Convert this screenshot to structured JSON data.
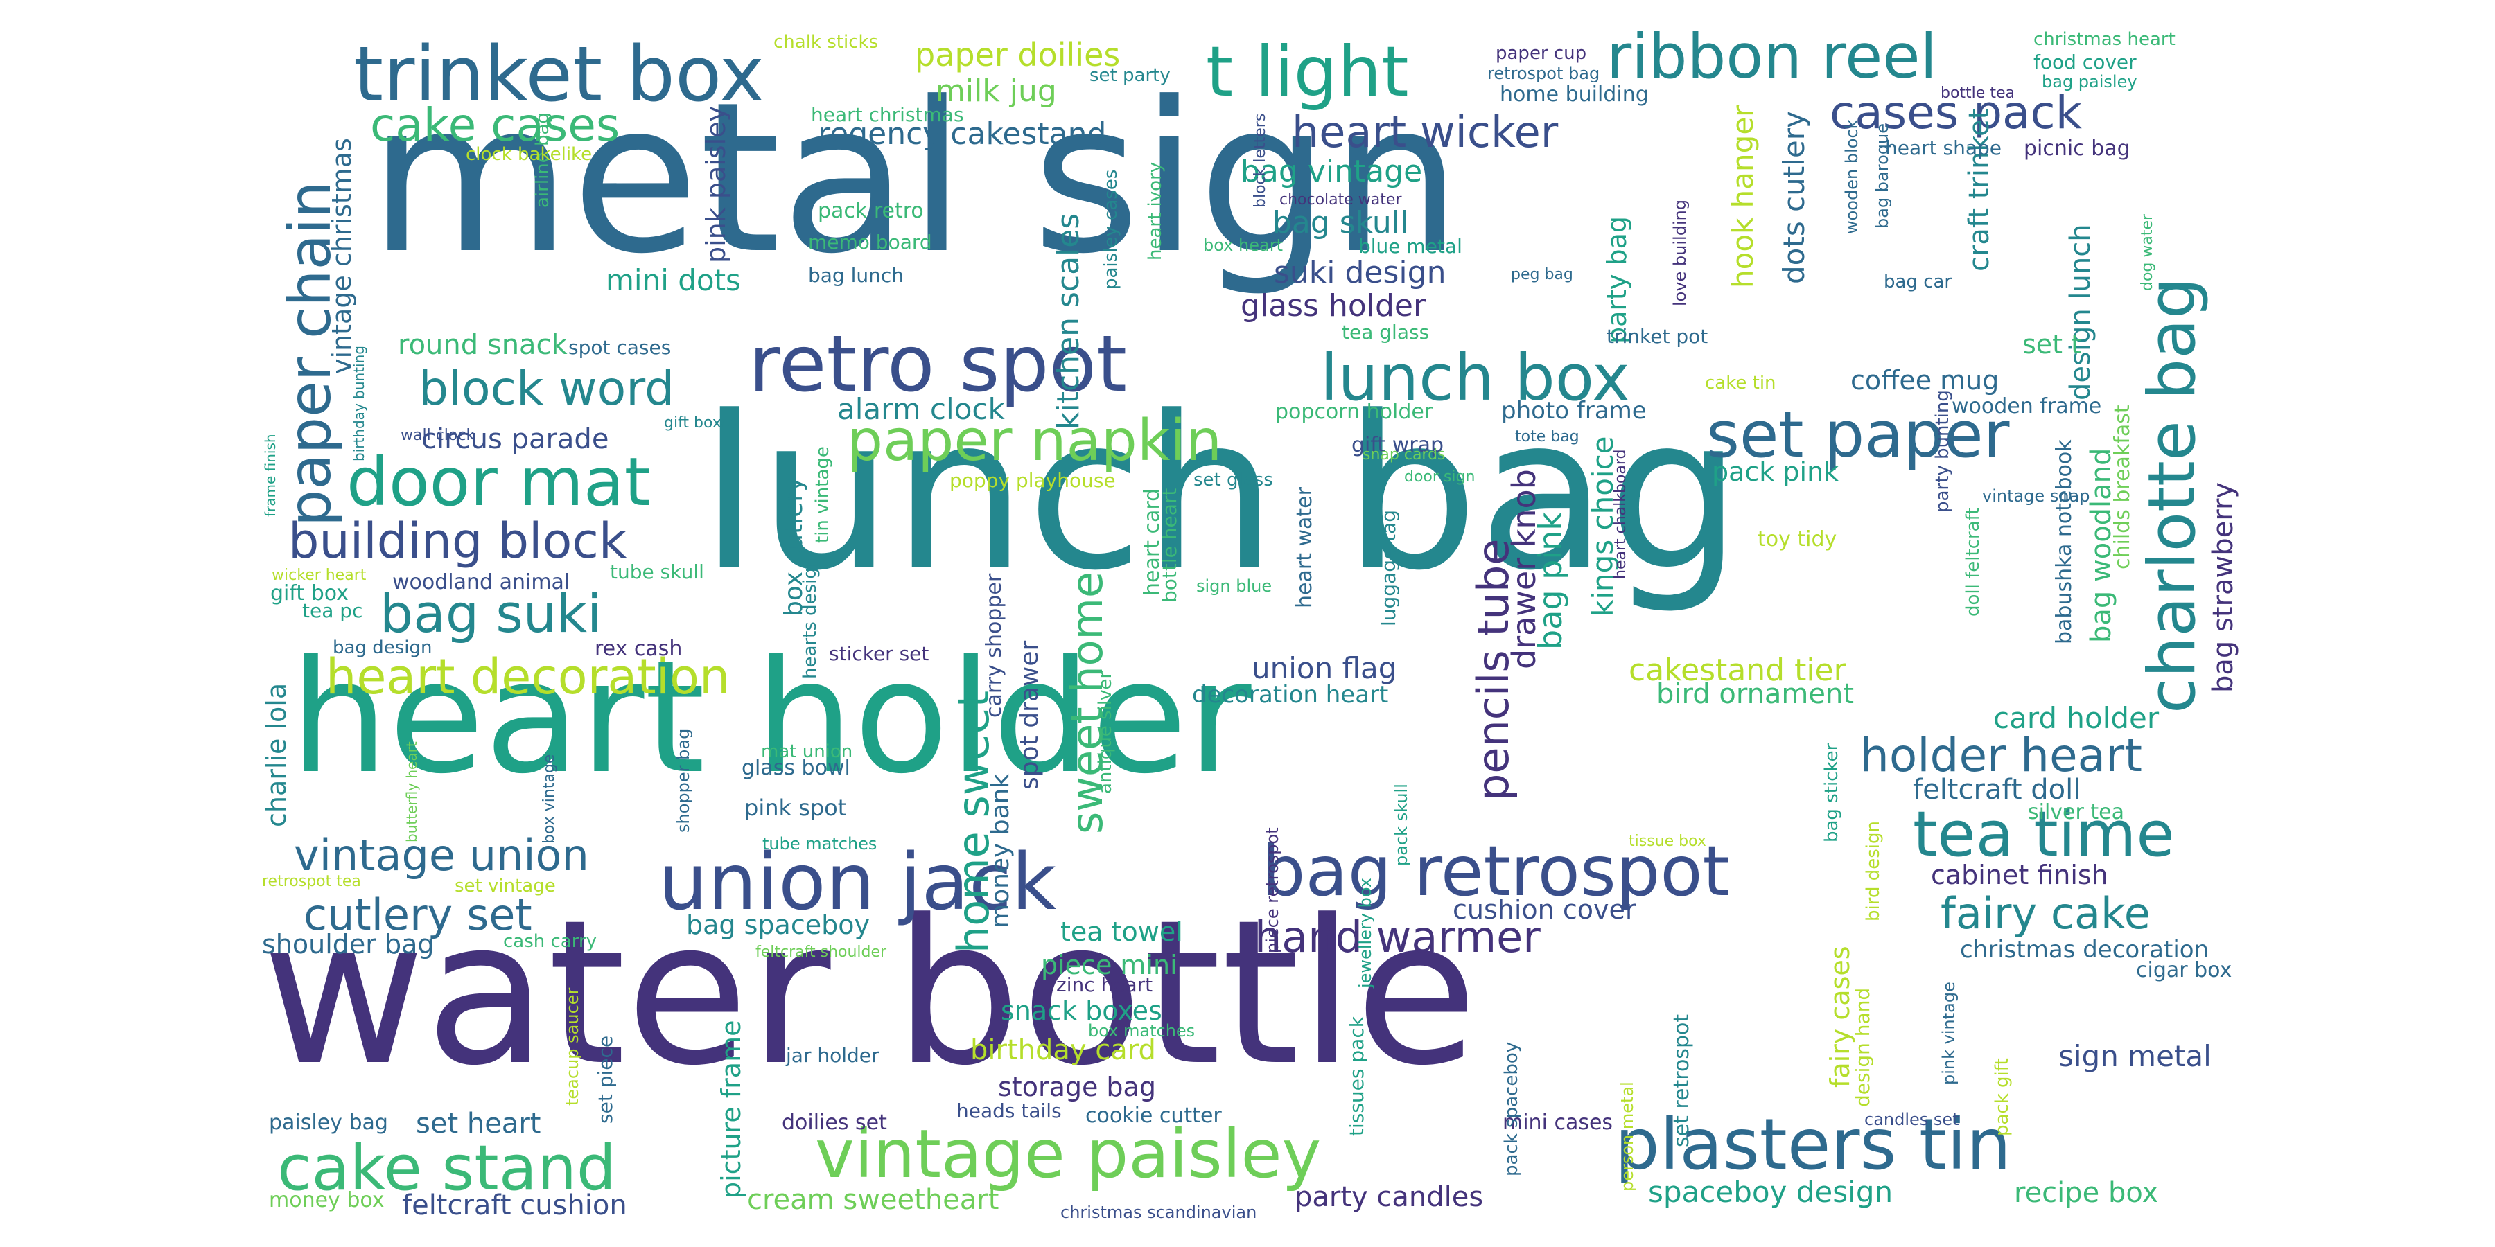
{
  "palette": {
    "v1": "#44337b",
    "v2": "#3a4f8b",
    "v3": "#2e6a8e",
    "v4": "#24878e",
    "v5": "#1fa187",
    "v6": "#3bb977",
    "v7": "#6ece58",
    "v8": "#b5de2b"
  },
  "words": [
    {
      "text": "metal sign",
      "color": "v3"
    },
    {
      "text": "lunch bag",
      "color": "v4"
    },
    {
      "text": "heart holder",
      "color": "v5"
    },
    {
      "text": "water bottle",
      "color": "v1"
    },
    {
      "text": "trinket box",
      "color": "v3"
    },
    {
      "text": "t light",
      "color": "v5"
    },
    {
      "text": "ribbon reel",
      "color": "v4"
    },
    {
      "text": "cake cases",
      "color": "v6"
    },
    {
      "text": "paper chain",
      "color": "v3"
    },
    {
      "text": "retro spot",
      "color": "v2"
    },
    {
      "text": "lunch box",
      "color": "v4"
    },
    {
      "text": "set paper",
      "color": "v3"
    },
    {
      "text": "charlotte bag",
      "color": "v4"
    },
    {
      "text": "cases pack",
      "color": "v2"
    },
    {
      "text": "door mat",
      "color": "v5"
    },
    {
      "text": "paper napkin",
      "color": "v7"
    },
    {
      "text": "building block",
      "color": "v2"
    },
    {
      "text": "block word",
      "color": "v4"
    },
    {
      "text": "bag suki",
      "color": "v4"
    },
    {
      "text": "heart decoration",
      "color": "v8"
    },
    {
      "text": "union jack",
      "color": "v2"
    },
    {
      "text": "bag retrospot",
      "color": "v2"
    },
    {
      "text": "vintage paisley",
      "color": "v7"
    },
    {
      "text": "plasters tin",
      "color": "v3"
    },
    {
      "text": "cake stand",
      "color": "v6"
    },
    {
      "text": "tea time",
      "color": "v4"
    },
    {
      "text": "holder heart",
      "color": "v3"
    },
    {
      "text": "fairy cake",
      "color": "v4"
    },
    {
      "text": "vintage union",
      "color": "v3"
    },
    {
      "text": "cutlery set",
      "color": "v3"
    },
    {
      "text": "hand warmer",
      "color": "v1"
    },
    {
      "text": "heart wicker",
      "color": "v2"
    },
    {
      "text": "pencils tube",
      "color": "v1"
    },
    {
      "text": "sweet home",
      "color": "v6"
    },
    {
      "text": "home sweet",
      "color": "v5"
    },
    {
      "text": "paper doilies",
      "color": "v8"
    },
    {
      "text": "milk jug",
      "color": "v7"
    },
    {
      "text": "regency cakestand",
      "color": "v3"
    },
    {
      "text": "alarm clock",
      "color": "v4"
    },
    {
      "text": "circus parade",
      "color": "v2"
    },
    {
      "text": "round snack",
      "color": "v6"
    },
    {
      "text": "mini dots",
      "color": "v5"
    },
    {
      "text": "suki design",
      "color": "v2"
    },
    {
      "text": "glass holder",
      "color": "v1"
    },
    {
      "text": "bag skull",
      "color": "v4"
    },
    {
      "text": "bag vintage",
      "color": "v5"
    },
    {
      "text": "kitchen scales",
      "color": "v4"
    },
    {
      "text": "pink paisley",
      "color": "v2"
    },
    {
      "text": "vintage christmas",
      "color": "v3"
    },
    {
      "text": "party bag",
      "color": "v5"
    },
    {
      "text": "dots cutlery",
      "color": "v3"
    },
    {
      "text": "hook hanger",
      "color": "v8"
    },
    {
      "text": "craft trinket",
      "color": "v4"
    },
    {
      "text": "design lunch",
      "color": "v4"
    },
    {
      "text": "bag strawberry",
      "color": "v1"
    },
    {
      "text": "bag woodland",
      "color": "v6"
    },
    {
      "text": "childs breakfast",
      "color": "v7"
    },
    {
      "text": "babushka notebook",
      "color": "v3"
    },
    {
      "text": "drawer knob",
      "color": "v1"
    },
    {
      "text": "bag pink",
      "color": "v5"
    },
    {
      "text": "kings choice",
      "color": "v5"
    },
    {
      "text": "pack pink",
      "color": "v5"
    },
    {
      "text": "coffee mug",
      "color": "v3"
    },
    {
      "text": "set t",
      "color": "v6"
    },
    {
      "text": "wooden frame",
      "color": "v3"
    },
    {
      "text": "cakestand tier",
      "color": "v8"
    },
    {
      "text": "bird ornament",
      "color": "v6"
    },
    {
      "text": "card holder",
      "color": "v5"
    },
    {
      "text": "feltcraft doll",
      "color": "v3"
    },
    {
      "text": "silver tea",
      "color": "v6"
    },
    {
      "text": "cabinet finish",
      "color": "v1"
    },
    {
      "text": "union flag",
      "color": "v2"
    },
    {
      "text": "decoration heart",
      "color": "v4"
    },
    {
      "text": "cushion cover",
      "color": "v2"
    },
    {
      "text": "christmas decoration",
      "color": "v3"
    },
    {
      "text": "cigar box",
      "color": "v3"
    },
    {
      "text": "sign metal",
      "color": "v2"
    },
    {
      "text": "spaceboy design",
      "color": "v5"
    },
    {
      "text": "recipe box",
      "color": "v6"
    },
    {
      "text": "party candles",
      "color": "v1"
    },
    {
      "text": "cream sweetheart",
      "color": "v7"
    },
    {
      "text": "feltcraft cushion",
      "color": "v2"
    },
    {
      "text": "money box",
      "color": "v7"
    },
    {
      "text": "set heart",
      "color": "v3"
    },
    {
      "text": "paisley bag",
      "color": "v3"
    },
    {
      "text": "shoulder bag",
      "color": "v3"
    },
    {
      "text": "bag spaceboy",
      "color": "v4"
    },
    {
      "text": "tea towel",
      "color": "v5"
    },
    {
      "text": "piece mini",
      "color": "v6"
    },
    {
      "text": "snack boxes",
      "color": "v5"
    },
    {
      "text": "birthday card",
      "color": "v8"
    },
    {
      "text": "storage bag",
      "color": "v1"
    },
    {
      "text": "cookie cutter",
      "color": "v3"
    },
    {
      "text": "mini cases",
      "color": "v1"
    },
    {
      "text": "picture frame",
      "color": "v5"
    },
    {
      "text": "money bank",
      "color": "v3"
    },
    {
      "text": "spot drawer",
      "color": "v2"
    },
    {
      "text": "box cutlery",
      "color": "v4"
    },
    {
      "text": "charlie lola",
      "color": "v4"
    },
    {
      "text": "woodland animal",
      "color": "v2"
    },
    {
      "text": "tube skull",
      "color": "v6"
    },
    {
      "text": "gift box",
      "color": "v5"
    },
    {
      "text": "tea pc",
      "color": "v5"
    },
    {
      "text": "rex cash",
      "color": "v1"
    },
    {
      "text": "bag design",
      "color": "v3"
    },
    {
      "text": "sticker set",
      "color": "v1"
    },
    {
      "text": "glass bowl",
      "color": "v3"
    },
    {
      "text": "pink spot",
      "color": "v3"
    },
    {
      "text": "mat union",
      "color": "v6"
    },
    {
      "text": "tube matches",
      "color": "v5"
    },
    {
      "text": "photo frame",
      "color": "v3"
    },
    {
      "text": "popcorn holder",
      "color": "v6"
    },
    {
      "text": "gift wrap",
      "color": "v2"
    },
    {
      "text": "set glass",
      "color": "v4"
    },
    {
      "text": "poppy playhouse",
      "color": "v8"
    },
    {
      "text": "toy tidy",
      "color": "v8"
    },
    {
      "text": "carry shopper",
      "color": "v2"
    },
    {
      "text": "heart card",
      "color": "v6"
    },
    {
      "text": "bottle heart",
      "color": "v6"
    },
    {
      "text": "heart water",
      "color": "v3"
    },
    {
      "text": "luggage tag",
      "color": "v4"
    },
    {
      "text": "sign blue",
      "color": "v6"
    },
    {
      "text": "heart christmas",
      "color": "v6"
    },
    {
      "text": "pack retro",
      "color": "v6"
    },
    {
      "text": "memo board",
      "color": "v6"
    },
    {
      "text": "bag lunch",
      "color": "v3"
    },
    {
      "text": "spot cases",
      "color": "v3"
    },
    {
      "text": "airline bag",
      "color": "v6"
    },
    {
      "text": "clock bakelike",
      "color": "v8"
    },
    {
      "text": "chalk sticks",
      "color": "v8"
    },
    {
      "text": "set party",
      "color": "v4"
    },
    {
      "text": "paper cup",
      "color": "v1"
    },
    {
      "text": "retrospot bag",
      "color": "v3"
    },
    {
      "text": "home building",
      "color": "v3"
    },
    {
      "text": "christmas heart",
      "color": "v6"
    },
    {
      "text": "food cover",
      "color": "v5"
    },
    {
      "text": "bag paisley",
      "color": "v5"
    },
    {
      "text": "bottle tea",
      "color": "v1"
    },
    {
      "text": "heart shape",
      "color": "v3"
    },
    {
      "text": "picnic bag",
      "color": "v1"
    },
    {
      "text": "block letters",
      "color": "v2"
    },
    {
      "text": "chocolate water",
      "color": "v1"
    },
    {
      "text": "box heart",
      "color": "v6"
    },
    {
      "text": "blue metal",
      "color": "v5"
    },
    {
      "text": "tea glass",
      "color": "v6"
    },
    {
      "text": "heart ivory",
      "color": "v6"
    },
    {
      "text": "paisley cases",
      "color": "v4"
    },
    {
      "text": "trinket pot",
      "color": "v3"
    },
    {
      "text": "love building",
      "color": "v1"
    },
    {
      "text": "wooden block",
      "color": "v3"
    },
    {
      "text": "bag baroque",
      "color": "v3"
    },
    {
      "text": "dog water",
      "color": "v6"
    },
    {
      "text": "bag car",
      "color": "v3"
    },
    {
      "text": "peg bag",
      "color": "v3"
    },
    {
      "text": "cake tin",
      "color": "v8"
    },
    {
      "text": "tote bag",
      "color": "v3"
    },
    {
      "text": "snap cards",
      "color": "v7"
    },
    {
      "text": "door sign",
      "color": "v6"
    },
    {
      "text": "heart chalkboard",
      "color": "v1"
    },
    {
      "text": "vintage snap",
      "color": "v3"
    },
    {
      "text": "party bunting",
      "color": "v2"
    },
    {
      "text": "doll feltcraft",
      "color": "v6"
    },
    {
      "text": "wall clock",
      "color": "v2"
    },
    {
      "text": "gift boxes",
      "color": "v4"
    },
    {
      "text": "birthday bunting",
      "color": "v4"
    },
    {
      "text": "frame finish",
      "color": "v5"
    },
    {
      "text": "wicker heart",
      "color": "v8"
    },
    {
      "text": "tin vintage",
      "color": "v6"
    },
    {
      "text": "hearts design",
      "color": "v4"
    },
    {
      "text": "antique silver",
      "color": "v6"
    },
    {
      "text": "butterfly heart",
      "color": "v7"
    },
    {
      "text": "box vintage",
      "color": "v3"
    },
    {
      "text": "shopper bag",
      "color": "v3"
    },
    {
      "text": "retrospot tea",
      "color": "v8"
    },
    {
      "text": "set vintage",
      "color": "v8"
    },
    {
      "text": "cash carry",
      "color": "v6"
    },
    {
      "text": "feltcraft shoulder",
      "color": "v7"
    },
    {
      "text": "teacup saucer",
      "color": "v8"
    },
    {
      "text": "set piece",
      "color": "v3"
    },
    {
      "text": "zinc heart",
      "color": "v1"
    },
    {
      "text": "box matches",
      "color": "v6"
    },
    {
      "text": "jar holder",
      "color": "v3"
    },
    {
      "text": "heads tails",
      "color": "v2"
    },
    {
      "text": "doilies set",
      "color": "v1"
    },
    {
      "text": "christmas scandinavian",
      "color": "v2"
    },
    {
      "text": "piece retrospot",
      "color": "v1"
    },
    {
      "text": "jewellery box",
      "color": "v5"
    },
    {
      "text": "pack skull",
      "color": "v5"
    },
    {
      "text": "tissues pack",
      "color": "v5"
    },
    {
      "text": "pack spaceboy",
      "color": "v3"
    },
    {
      "text": "person metal",
      "color": "v8"
    },
    {
      "text": "set retrospot",
      "color": "v4"
    },
    {
      "text": "fairy cases",
      "color": "v8"
    },
    {
      "text": "design hand",
      "color": "v8"
    },
    {
      "text": "bird design",
      "color": "v8"
    },
    {
      "text": "bag sticker",
      "color": "v5"
    },
    {
      "text": "tissue box",
      "color": "v8"
    },
    {
      "text": "candles set",
      "color": "v2"
    },
    {
      "text": "pink vintage",
      "color": "v3"
    },
    {
      "text": "pack gift",
      "color": "v8"
    }
  ]
}
